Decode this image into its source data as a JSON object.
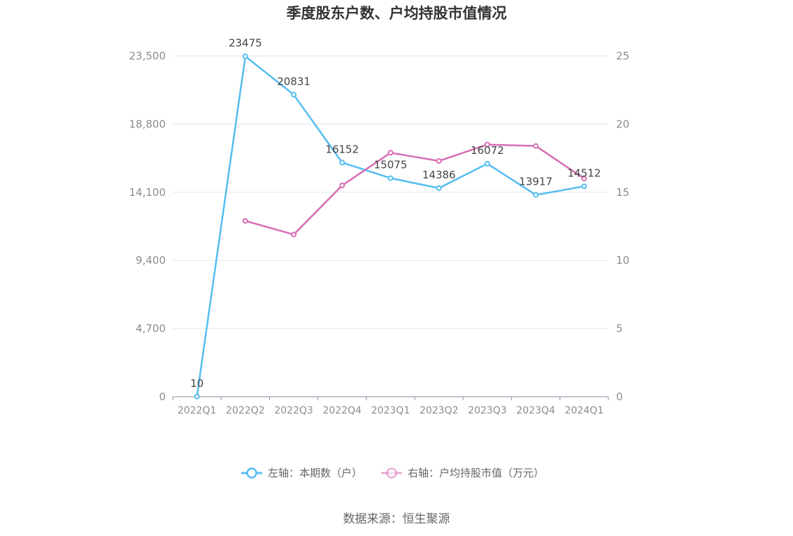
{
  "chart_data": {
    "type": "line",
    "title": "季度股东户数、户均持股市值情况",
    "categories": [
      "2022Q1",
      "2022Q2",
      "2022Q3",
      "2022Q4",
      "2023Q1",
      "2023Q2",
      "2023Q3",
      "2023Q4",
      "2024Q1"
    ],
    "series": [
      {
        "name": "左轴：本期数（户）",
        "axis": "left",
        "color": "#55bdf0",
        "values": [
          10,
          23475,
          20831,
          16152,
          15075,
          14386,
          16072,
          13917,
          14512
        ],
        "data_labels": [
          "10",
          "23475",
          "20831",
          "16152",
          "15075",
          "14386",
          "16072",
          "13917",
          "14512"
        ]
      },
      {
        "name": "右轴：户均持股市值（万元）",
        "axis": "right",
        "color": "#d66eb4",
        "values": [
          null,
          12.9,
          11.9,
          15.5,
          17.9,
          17.3,
          18.5,
          18.4,
          16.0
        ]
      }
    ],
    "left_axis": {
      "ylim": [
        0,
        23500
      ],
      "ticks": [
        0,
        4700,
        9400,
        14100,
        18800,
        23500
      ],
      "tick_labels": [
        "0",
        "4,700",
        "9,400",
        "14,100",
        "18,800",
        "23,500"
      ]
    },
    "right_axis": {
      "ylim": [
        0,
        25
      ],
      "ticks": [
        0,
        5,
        10,
        15,
        20,
        25
      ],
      "tick_labels": [
        "0",
        "5",
        "10",
        "15",
        "20",
        "25"
      ]
    },
    "grid": true,
    "legend_position": "bottom",
    "source": "数据来源：恒生聚源"
  }
}
